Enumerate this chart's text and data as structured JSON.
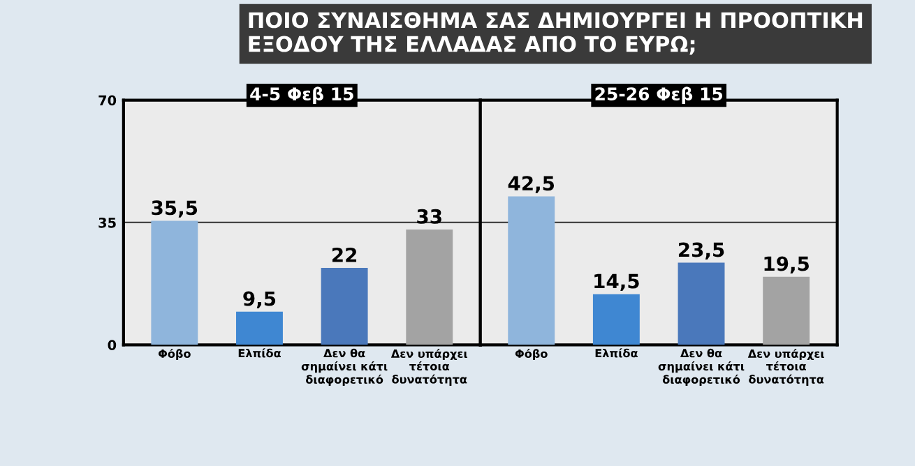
{
  "chart_data": [
    {
      "type": "bar",
      "title": "4-5 Φεβ 15",
      "annotations": [
        "ΠΟΙΟ ΣΥΝΑΙΣΘΗΜΑ ΣΑΣ ΔΗΜΙΟΥΡΓΕΙ Η ΠΡΟΟΠΤΙΚΗ\nΕΞΟΔΟΥ ΤΗΣ ΕΛΛΑΔΑΣ ΑΠΟ ΤΟ ΕΥΡΩ;"
      ],
      "categories": [
        "Φόβο",
        "Ελπίδα",
        "Δεν θα\nσημαίνει κάτι\nδιαφορετικό",
        "Δεν υπάρχει\nτέτοια\nδυνατότητα"
      ],
      "values": [
        35.5,
        9.5,
        22,
        33
      ],
      "colors": [
        "#8fb5dc",
        "#3f87d2",
        "#4a78bb",
        "#a3a3a3"
      ],
      "value_labels": [
        "35,5",
        "9,5",
        "22",
        "33"
      ],
      "ylim": [
        0,
        70
      ],
      "yticks": [
        0,
        35,
        70
      ],
      "grid": "y"
    },
    {
      "type": "bar",
      "title": "25-26 Φεβ 15",
      "categories": [
        "Φόβο",
        "Ελπίδα",
        "Δεν θα\nσημαίνει κάτι\nδιαφορετικό",
        "Δεν υπάρχει\nτέτοια\nδυνατότητα"
      ],
      "values": [
        42.5,
        14.5,
        23.5,
        19.5
      ],
      "colors": [
        "#8fb5dc",
        "#3f87d2",
        "#4a78bb",
        "#a3a3a3"
      ],
      "value_labels": [
        "42,5",
        "14,5",
        "23,5",
        "19,5"
      ],
      "ylim": [
        0,
        70
      ],
      "yticks": [
        0,
        35,
        70
      ],
      "grid": "y",
      "tick_labels": "x"
    }
  ]
}
